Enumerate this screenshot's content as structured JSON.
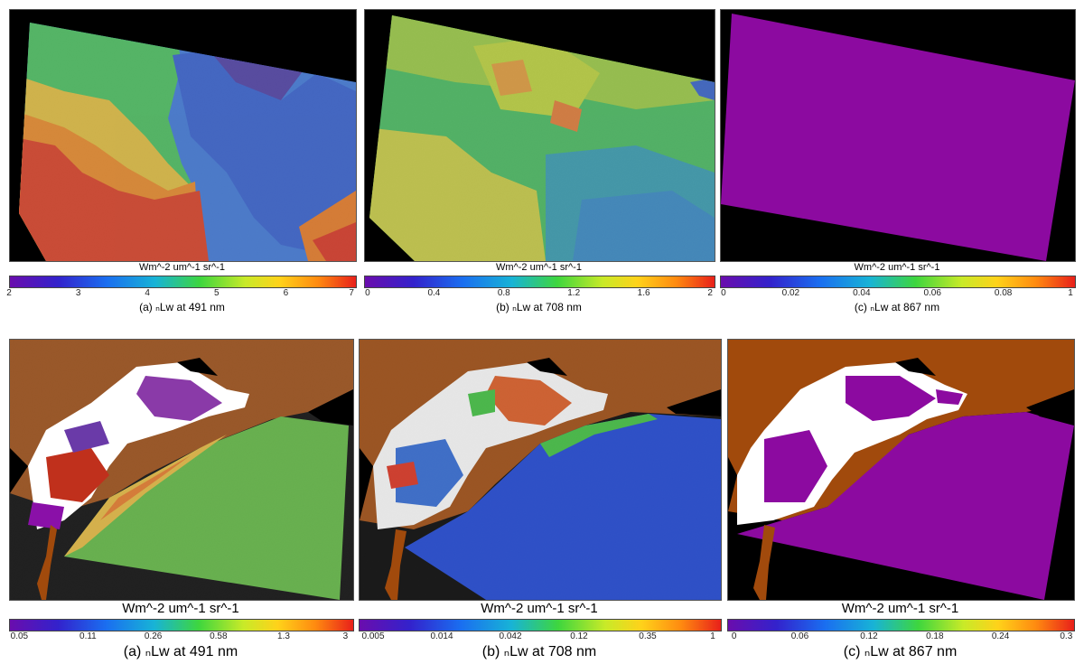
{
  "figure": {
    "colorbar_colors": [
      "#6a0dad",
      "#3322cc",
      "#1a6ef0",
      "#18b3d6",
      "#3ed63e",
      "#c8ea28",
      "#ffd21a",
      "#ff8a10",
      "#e8201a"
    ],
    "land_color": "#a14a0c",
    "cloud_color": "#ffffff",
    "top_row": [
      {
        "units": "Wm^-2 um^-1 sr^-1",
        "ticks": [
          "2",
          "3",
          "4",
          "5",
          "6",
          "7"
        ],
        "caption": "(a) ₙLw at 491 nm"
      },
      {
        "units": "Wm^-2 um^-1 sr^-1",
        "ticks": [
          "0",
          "0.4",
          "0.8",
          "1.2",
          "1.6",
          "2"
        ],
        "caption": "(b) ₙLw at 708 nm"
      },
      {
        "units": "Wm^-2 um^-1 sr^-1",
        "ticks": [
          "0",
          "0.02",
          "0.04",
          "0.06",
          "0.08",
          "1"
        ],
        "caption": "(c) ₙLw at 867 nm"
      }
    ],
    "bottom_row": [
      {
        "units": "Wm^-2 um^-1 sr^-1",
        "ticks": [
          "0.05",
          "0.11",
          "0.26",
          "0.58",
          "1.3",
          "3"
        ],
        "caption": "(a) ₙLw at 491 nm"
      },
      {
        "units": "Wm^-2 um^-1 sr^-1",
        "ticks": [
          "0.005",
          "0.014",
          "0.042",
          "0.12",
          "0.35",
          "1"
        ],
        "caption": "(b) ₙLw at 708 nm"
      },
      {
        "units": "Wm^-2 um^-1 sr^-1",
        "ticks": [
          "0",
          "0.06",
          "0.12",
          "0.18",
          "0.24",
          "0.3"
        ],
        "caption": "(c) ₙLw at 867 nm"
      }
    ]
  }
}
